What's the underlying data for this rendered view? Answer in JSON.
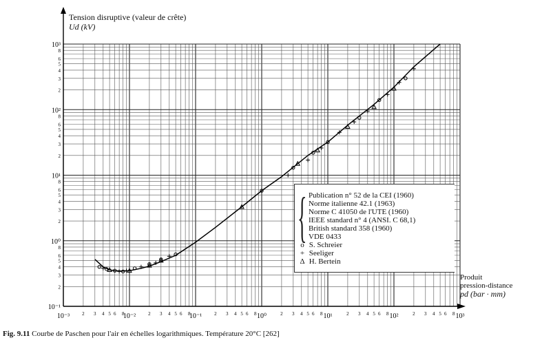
{
  "caption": {
    "figure_no": "Fig. 9.11",
    "text": "Courbe de Paschen pour l'air en échelles logarithmiques. Température 20°C [262]"
  },
  "chart_data": {
    "type": "line",
    "scale": "log-log",
    "grid": true,
    "ylabel": "Tension disruptive (valeur de crête)",
    "ylabel_unit": "Ud (kV)",
    "xlabel": [
      "Produit",
      "pression-distance",
      "pd (bar · mm)"
    ],
    "xlim": [
      0.001,
      1000
    ],
    "ylim": [
      0.1,
      1000
    ],
    "x_decade_labels": [
      "10⁻³",
      "10⁻²",
      "10⁻¹",
      "10⁰",
      "10¹",
      "10²",
      "10³"
    ],
    "x_minor_labels": [
      "2",
      "3",
      "4",
      "5",
      "6",
      "8"
    ],
    "y_decade_labels": [
      "10⁻¹",
      "10⁰",
      "10¹",
      "10²",
      "10³"
    ],
    "y_minor_labels": [
      "2",
      "3",
      "4",
      "5",
      "6",
      "8"
    ],
    "legend_position": "lower-right",
    "legend_references": [
      "Publication n° 52 de la CEI (1960)",
      "Norme italienne 42.1 (1963)",
      "Norme C 41050 de l'UTE (1960)",
      "IEEE standard n° 4 (ANSI. C 68,1)",
      "British standard 358 (1960)",
      "VDE 0433"
    ],
    "series": [
      {
        "symbol": "curve",
        "x": [
          0.003,
          0.004,
          0.005,
          0.006,
          0.008,
          0.01,
          0.015,
          0.02,
          0.03,
          0.05,
          0.1,
          0.2,
          0.5,
          1,
          2,
          5,
          10,
          20,
          50,
          100,
          200,
          500
        ],
        "y": [
          0.52,
          0.4,
          0.36,
          0.35,
          0.345,
          0.35,
          0.38,
          0.41,
          0.48,
          0.6,
          0.95,
          1.6,
          3.3,
          5.8,
          9.5,
          20,
          32,
          58,
          120,
          220,
          450,
          1000
        ]
      },
      {
        "name": "S. Schreier",
        "symbol": "o",
        "x": [
          0.0035,
          0.0045,
          0.006,
          0.008,
          0.012,
          0.02,
          0.03,
          0.05,
          1,
          3,
          6,
          10,
          30,
          60,
          150
        ],
        "y": [
          0.4,
          0.37,
          0.35,
          0.34,
          0.38,
          0.44,
          0.52,
          0.62,
          5.8,
          13,
          22,
          32,
          75,
          140,
          300
        ]
      },
      {
        "name": "Seeliger",
        "symbol": "+",
        "x": [
          0.004,
          0.007,
          0.009,
          0.015,
          0.025,
          0.04,
          2.5,
          5,
          8,
          15,
          25,
          40,
          80,
          120,
          200
        ],
        "y": [
          0.38,
          0.34,
          0.35,
          0.4,
          0.46,
          0.58,
          10,
          17,
          26,
          45,
          65,
          95,
          170,
          260,
          420
        ]
      },
      {
        "name": "H. Bertein",
        "symbol": "Δ",
        "x": [
          0.005,
          0.01,
          0.02,
          0.03,
          0.5,
          3.5,
          7,
          20,
          50,
          100
        ],
        "y": [
          0.36,
          0.35,
          0.42,
          0.5,
          3.3,
          15,
          24,
          55,
          110,
          210
        ]
      }
    ]
  }
}
